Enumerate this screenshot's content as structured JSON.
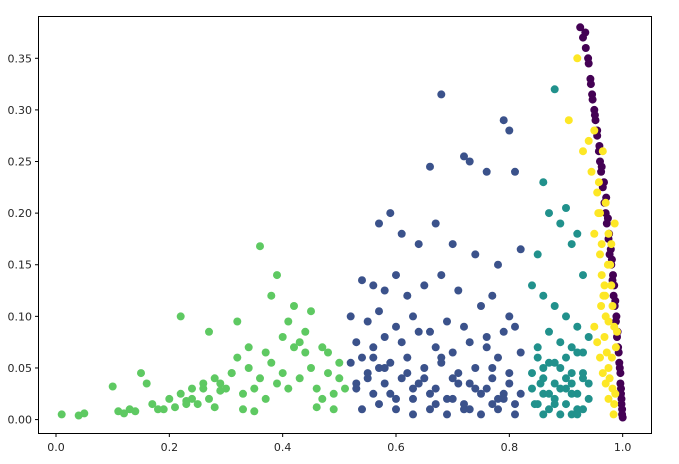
{
  "chart_data": {
    "type": "scatter",
    "title": "",
    "xlabel": "",
    "ylabel": "",
    "xlim": [
      -0.03,
      1.05
    ],
    "ylim": [
      -0.013,
      0.39
    ],
    "grid": false,
    "legend": "none",
    "x_ticks": [
      "0.0",
      "0.2",
      "0.4",
      "0.6",
      "0.8",
      "1.0"
    ],
    "x_tick_values": [
      0.0,
      0.2,
      0.4,
      0.6,
      0.8,
      1.0
    ],
    "y_ticks": [
      "0.00",
      "0.05",
      "0.10",
      "0.15",
      "0.20",
      "0.25",
      "0.30",
      "0.35"
    ],
    "y_tick_values": [
      0.0,
      0.05,
      0.1,
      0.15,
      0.2,
      0.25,
      0.3,
      0.35
    ],
    "series": [
      {
        "color": "#440154",
        "x": [
          0.925,
          0.93,
          0.935,
          0.94,
          0.943,
          0.946,
          0.95,
          0.952,
          0.955,
          0.958,
          0.96,
          0.962,
          0.965,
          0.968,
          0.97,
          0.972,
          0.975,
          0.977,
          0.98,
          0.982,
          0.984,
          0.986,
          0.988,
          0.99,
          0.992,
          0.994,
          0.996,
          0.997,
          0.998,
          0.999,
          1.0,
          0.999,
          0.998,
          0.997,
          0.996,
          0.995,
          0.993,
          0.991,
          0.989,
          0.987,
          0.985,
          0.983,
          0.981,
          0.979,
          0.976,
          0.974,
          0.971,
          0.967,
          0.963,
          0.959,
          0.955,
          0.951,
          0.947,
          0.944,
          0.939,
          0.934
        ],
        "y": [
          0.38,
          0.37,
          0.36,
          0.345,
          0.33,
          0.315,
          0.3,
          0.29,
          0.275,
          0.26,
          0.25,
          0.24,
          0.225,
          0.21,
          0.2,
          0.19,
          0.175,
          0.16,
          0.15,
          0.135,
          0.12,
          0.11,
          0.095,
          0.08,
          0.07,
          0.055,
          0.045,
          0.03,
          0.02,
          0.01,
          0.002,
          0.005,
          0.015,
          0.025,
          0.035,
          0.05,
          0.065,
          0.085,
          0.1,
          0.115,
          0.13,
          0.14,
          0.155,
          0.165,
          0.18,
          0.195,
          0.215,
          0.23,
          0.245,
          0.265,
          0.28,
          0.295,
          0.31,
          0.325,
          0.35,
          0.375
        ]
      },
      {
        "color": "#fde725",
        "x": [
          0.92,
          0.905,
          0.94,
          0.93,
          0.95,
          0.945,
          0.955,
          0.96,
          0.95,
          0.965,
          0.958,
          0.96,
          0.97,
          0.963,
          0.966,
          0.97,
          0.975,
          0.968,
          0.972,
          0.975,
          0.978,
          0.98,
          0.977,
          0.982,
          0.985,
          0.982,
          0.985,
          0.988,
          0.984,
          0.975,
          0.97,
          0.965,
          0.96,
          0.955,
          0.95,
          0.962,
          0.968,
          0.974,
          0.98,
          0.986,
          0.99,
          0.957,
          0.963,
          0.969,
          0.975,
          0.981,
          0.987
        ],
        "y": [
          0.35,
          0.29,
          0.27,
          0.26,
          0.28,
          0.24,
          0.22,
          0.2,
          0.18,
          0.26,
          0.23,
          0.16,
          0.21,
          0.14,
          0.12,
          0.1,
          0.18,
          0.08,
          0.065,
          0.05,
          0.15,
          0.13,
          0.04,
          0.11,
          0.09,
          0.03,
          0.015,
          0.07,
          0.005,
          0.02,
          0.035,
          0.045,
          0.06,
          0.075,
          0.09,
          0.11,
          0.13,
          0.15,
          0.17,
          0.19,
          0.085,
          0.2,
          0.17,
          0.12,
          0.095,
          0.06,
          0.025
        ]
      },
      {
        "color": "#21918c",
        "x": [
          0.88,
          0.86,
          0.87,
          0.9,
          0.89,
          0.92,
          0.91,
          0.93,
          0.85,
          0.84,
          0.86,
          0.88,
          0.9,
          0.92,
          0.94,
          0.87,
          0.89,
          0.91,
          0.93,
          0.85,
          0.87,
          0.89,
          0.91,
          0.93,
          0.94,
          0.86,
          0.88,
          0.9,
          0.92,
          0.84,
          0.86,
          0.88,
          0.9,
          0.92,
          0.94,
          0.85,
          0.87,
          0.89,
          0.91,
          0.93,
          0.84,
          0.86,
          0.88,
          0.9,
          0.92,
          0.87,
          0.89,
          0.91,
          0.93,
          0.85,
          0.88,
          0.9,
          0.92,
          0.86,
          0.91,
          0.845,
          0.855
        ],
        "y": [
          0.32,
          0.23,
          0.2,
          0.205,
          0.19,
          0.18,
          0.17,
          0.14,
          0.16,
          0.13,
          0.12,
          0.11,
          0.1,
          0.09,
          0.08,
          0.085,
          0.075,
          0.07,
          0.065,
          0.06,
          0.055,
          0.05,
          0.045,
          0.04,
          0.035,
          0.04,
          0.035,
          0.03,
          0.025,
          0.03,
          0.025,
          0.02,
          0.015,
          0.01,
          0.02,
          0.015,
          0.01,
          0.005,
          0.005,
          0.01,
          0.045,
          0.05,
          0.055,
          0.06,
          0.065,
          0.025,
          0.03,
          0.035,
          0.045,
          0.07,
          0.015,
          0.04,
          0.005,
          0.005,
          0.025,
          0.015,
          0.035
        ]
      },
      {
        "color": "#3b528b",
        "x": [
          0.68,
          0.79,
          0.72,
          0.73,
          0.8,
          0.66,
          0.76,
          0.81,
          0.57,
          0.59,
          0.61,
          0.64,
          0.67,
          0.7,
          0.74,
          0.78,
          0.82,
          0.54,
          0.56,
          0.58,
          0.6,
          0.62,
          0.65,
          0.68,
          0.71,
          0.75,
          0.77,
          0.8,
          0.52,
          0.55,
          0.57,
          0.6,
          0.63,
          0.66,
          0.69,
          0.72,
          0.76,
          0.79,
          0.81,
          0.53,
          0.56,
          0.58,
          0.61,
          0.64,
          0.67,
          0.7,
          0.73,
          0.76,
          0.78,
          0.82,
          0.52,
          0.54,
          0.57,
          0.59,
          0.62,
          0.65,
          0.68,
          0.71,
          0.74,
          0.77,
          0.8,
          0.55,
          0.58,
          0.61,
          0.64,
          0.67,
          0.7,
          0.73,
          0.76,
          0.79,
          0.53,
          0.56,
          0.6,
          0.63,
          0.66,
          0.69,
          0.72,
          0.75,
          0.78,
          0.81,
          0.54,
          0.57,
          0.6,
          0.63,
          0.66,
          0.69,
          0.72,
          0.75,
          0.78,
          0.81,
          0.55,
          0.58,
          0.62,
          0.65,
          0.68,
          0.71,
          0.74,
          0.77,
          0.8,
          0.56,
          0.59,
          0.63,
          0.67,
          0.7,
          0.73,
          0.77,
          0.79,
          0.53,
          0.82
        ],
        "y": [
          0.315,
          0.29,
          0.255,
          0.25,
          0.28,
          0.245,
          0.24,
          0.24,
          0.19,
          0.2,
          0.18,
          0.17,
          0.19,
          0.17,
          0.16,
          0.15,
          0.165,
          0.135,
          0.13,
          0.125,
          0.14,
          0.12,
          0.13,
          0.14,
          0.125,
          0.11,
          0.12,
          0.1,
          0.1,
          0.095,
          0.105,
          0.09,
          0.1,
          0.085,
          0.095,
          0.09,
          0.08,
          0.085,
          0.09,
          0.075,
          0.07,
          0.08,
          0.075,
          0.085,
          0.07,
          0.065,
          0.075,
          0.07,
          0.06,
          0.065,
          0.055,
          0.06,
          0.05,
          0.055,
          0.06,
          0.05,
          0.055,
          0.045,
          0.05,
          0.04,
          0.045,
          0.04,
          0.035,
          0.04,
          0.035,
          0.03,
          0.04,
          0.035,
          0.03,
          0.025,
          0.03,
          0.025,
          0.02,
          0.03,
          0.025,
          0.02,
          0.015,
          0.025,
          0.02,
          0.015,
          0.01,
          0.015,
          0.01,
          0.005,
          0.01,
          0.005,
          0.01,
          0.005,
          0.01,
          0.005,
          0.045,
          0.05,
          0.045,
          0.04,
          0.06,
          0.035,
          0.03,
          0.05,
          0.035,
          0.06,
          0.025,
          0.02,
          0.015,
          0.02,
          0.01,
          0.015,
          0.02,
          0.035,
          0.025
        ]
      },
      {
        "color": "#5ec962",
        "x": [
          0.01,
          0.04,
          0.05,
          0.1,
          0.11,
          0.13,
          0.15,
          0.16,
          0.17,
          0.19,
          0.2,
          0.21,
          0.22,
          0.23,
          0.24,
          0.25,
          0.26,
          0.27,
          0.28,
          0.29,
          0.3,
          0.31,
          0.32,
          0.33,
          0.34,
          0.35,
          0.36,
          0.37,
          0.38,
          0.39,
          0.4,
          0.41,
          0.42,
          0.43,
          0.44,
          0.45,
          0.46,
          0.47,
          0.48,
          0.49,
          0.5,
          0.51,
          0.36,
          0.39,
          0.22,
          0.38,
          0.32,
          0.27,
          0.42,
          0.45,
          0.41,
          0.47,
          0.4,
          0.44,
          0.48,
          0.5,
          0.43,
          0.37,
          0.34,
          0.31,
          0.29,
          0.26,
          0.24,
          0.18,
          0.14,
          0.12,
          0.23,
          0.28,
          0.33,
          0.35,
          0.46,
          0.49
        ],
        "y": [
          0.005,
          0.004,
          0.006,
          0.032,
          0.008,
          0.01,
          0.045,
          0.035,
          0.015,
          0.01,
          0.02,
          0.012,
          0.025,
          0.018,
          0.03,
          0.015,
          0.035,
          0.02,
          0.04,
          0.028,
          0.03,
          0.045,
          0.06,
          0.025,
          0.05,
          0.03,
          0.04,
          0.02,
          0.055,
          0.035,
          0.045,
          0.03,
          0.07,
          0.04,
          0.065,
          0.05,
          0.03,
          0.02,
          0.045,
          0.025,
          0.04,
          0.03,
          0.168,
          0.14,
          0.1,
          0.12,
          0.095,
          0.085,
          0.11,
          0.105,
          0.095,
          0.07,
          0.08,
          0.085,
          0.065,
          0.055,
          0.075,
          0.065,
          0.07,
          0.045,
          0.035,
          0.03,
          0.02,
          0.01,
          0.008,
          0.006,
          0.015,
          0.012,
          0.01,
          0.008,
          0.012,
          0.01
        ]
      }
    ]
  }
}
